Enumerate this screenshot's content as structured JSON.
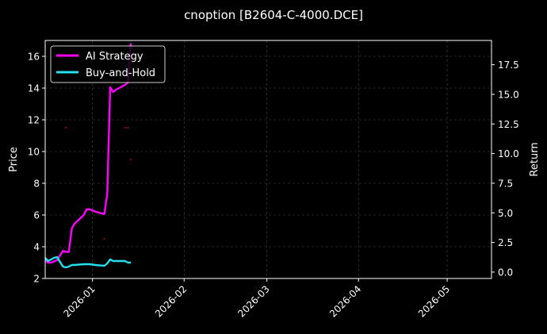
{
  "chart_data": {
    "type": "line",
    "title": "cnoption [B2604-C-4000.DCE]",
    "xlabel": "",
    "ylabel": "Price",
    "ylabel_right": "Return",
    "x_ticks": [
      "2026-01",
      "2026-02",
      "2026-03",
      "2026-04",
      "2026-05"
    ],
    "x_tick_dates": [
      "2026-01-01",
      "2026-02-01",
      "2026-03-01",
      "2026-04-01",
      "2026-05-01"
    ],
    "x_range": [
      "2025-12-16",
      "2026-05-16"
    ],
    "y_left": {
      "ylim": [
        2,
        17
      ],
      "ticks": [
        "2",
        "4",
        "6",
        "8",
        "10",
        "12",
        "14",
        "16"
      ],
      "tick_values": [
        2,
        4,
        6,
        8,
        10,
        12,
        14,
        16
      ]
    },
    "y_right": {
      "ylim": [
        -0.54,
        19.55
      ],
      "ticks": [
        "0.0",
        "2.5",
        "5.0",
        "7.5",
        "10.0",
        "12.5",
        "15.0",
        "17.5"
      ],
      "tick_values": [
        0,
        2.5,
        5,
        7.5,
        10,
        12.5,
        15,
        17.5
      ]
    },
    "grid": true,
    "legend": "upper left",
    "series": [
      {
        "name": "AI Strategy",
        "color": "#ff00ff",
        "axis": "right",
        "x": [
          "2025-12-16",
          "2025-12-17",
          "2025-12-18",
          "2025-12-19",
          "2025-12-20",
          "2025-12-22",
          "2025-12-23",
          "2025-12-24",
          "2025-12-25",
          "2025-12-26",
          "2025-12-29",
          "2025-12-30",
          "2025-12-31",
          "2026-01-02",
          "2026-01-05",
          "2026-01-06",
          "2026-01-07",
          "2026-01-08",
          "2026-01-09",
          "2026-01-12",
          "2026-01-13",
          "2026-01-14"
        ],
        "values": [
          1.0,
          0.8,
          0.8,
          0.9,
          1.0,
          1.8,
          1.7,
          1.7,
          3.7,
          4.1,
          4.8,
          5.3,
          5.3,
          5.1,
          4.9,
          6.6,
          15.6,
          15.2,
          15.4,
          15.8,
          16.0,
          19.3
        ]
      },
      {
        "name": "Buy-and-Hold",
        "color": "#22e0ee",
        "axis": "left",
        "x": [
          "2025-12-16",
          "2025-12-17",
          "2025-12-18",
          "2025-12-19",
          "2025-12-20",
          "2025-12-22",
          "2025-12-23",
          "2025-12-24",
          "2025-12-25",
          "2025-12-26",
          "2025-12-29",
          "2025-12-30",
          "2025-12-31",
          "2026-01-02",
          "2026-01-05",
          "2026-01-06",
          "2026-01-07",
          "2026-01-08",
          "2026-01-09",
          "2026-01-12",
          "2026-01-13",
          "2026-01-14"
        ],
        "values": [
          3.3,
          3.1,
          3.2,
          3.3,
          3.35,
          2.75,
          2.7,
          2.75,
          2.85,
          2.85,
          2.9,
          2.9,
          2.9,
          2.85,
          2.8,
          2.95,
          3.2,
          3.1,
          3.1,
          3.1,
          3.0,
          3.0
        ]
      }
    ],
    "markers": {
      "color": "#ff0000",
      "axis": "left",
      "points": [
        {
          "x": "2025-12-23",
          "y": 11.5
        },
        {
          "x": "2026-01-05",
          "y": 4.5
        },
        {
          "x": "2026-01-12",
          "y": 11.5
        },
        {
          "x": "2026-01-13",
          "y": 11.5
        },
        {
          "x": "2026-01-14",
          "y": 9.5
        }
      ]
    }
  }
}
